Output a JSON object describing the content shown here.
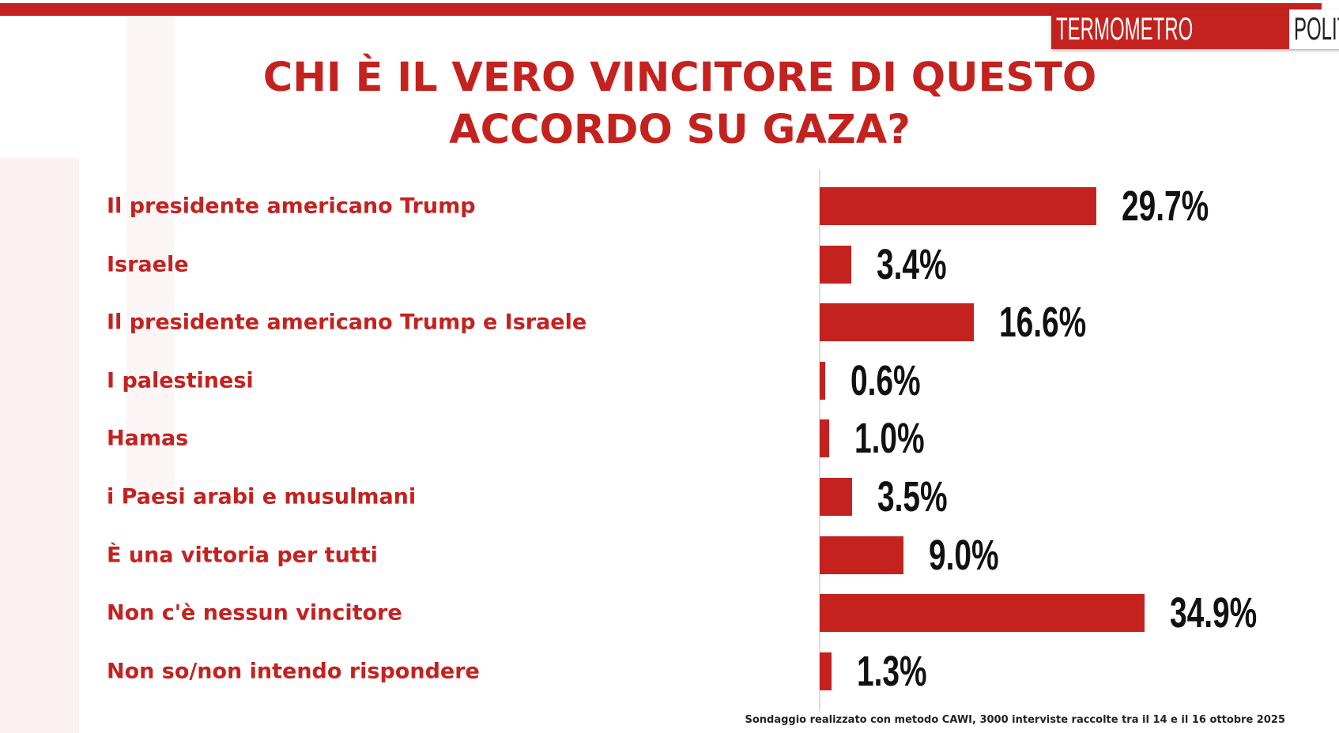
{
  "brand": {
    "part1": "TERMOMETRO",
    "part2": "POLITICO",
    "accent": "#c4221f"
  },
  "chart_data": {
    "type": "bar",
    "orientation": "horizontal",
    "title": "CHI È IL VERO VINCITORE DI QUESTO ACCORDO SU GAZA?",
    "title_lines": [
      "CHI È IL VERO VINCITORE DI QUESTO",
      "ACCORDO SU GAZA?"
    ],
    "categories": [
      "Il presidente americano Trump",
      "Israele",
      "Il presidente americano Trump e Israele",
      "I palestinesi",
      "Hamas",
      "i Paesi arabi e musulmani",
      "È una vittoria per tutti",
      "Non c'è nessun vincitore",
      "Non so/non intendo rispondere"
    ],
    "values": [
      29.7,
      3.4,
      16.6,
      0.6,
      1.0,
      3.5,
      9.0,
      34.9,
      1.3
    ],
    "value_labels": [
      "29.7%",
      "3.4%",
      "16.6%",
      "0.6%",
      "1.0%",
      "3.5%",
      "9.0%",
      "34.9%",
      "1.3%"
    ],
    "unit": "%",
    "xlim": [
      0,
      35
    ]
  },
  "footer": "Sondaggio realizzato con metodo CAWI, 3000 interviste raccolte tra il 14 e il 16 ottobre  2025"
}
